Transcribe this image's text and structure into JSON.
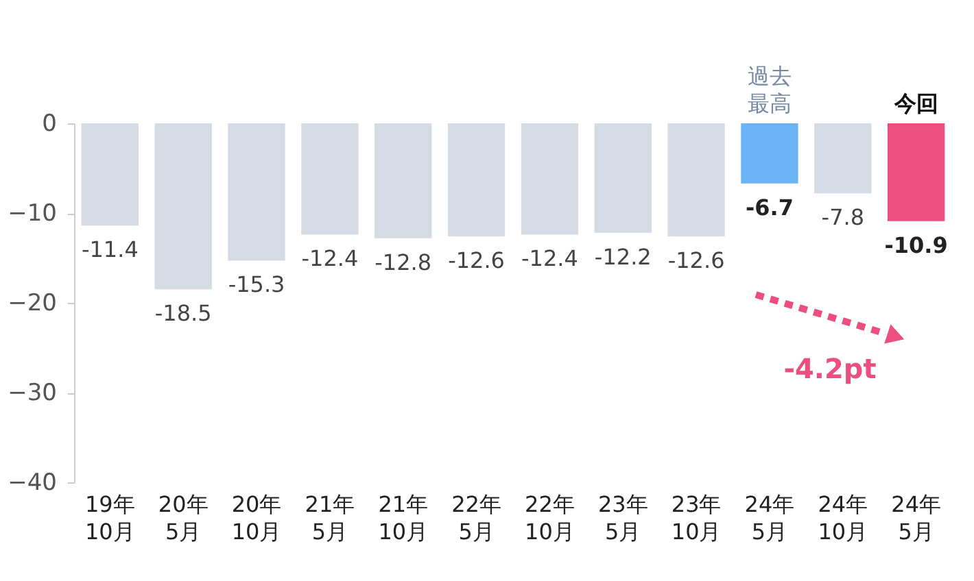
{
  "chart_data": {
    "type": "bar",
    "categories": [
      "19年\n10月",
      "20年\n5月",
      "20年\n10月",
      "21年\n5月",
      "21年\n10月",
      "22年\n5月",
      "22年\n10月",
      "23年\n5月",
      "23年\n10月",
      "24年\n5月",
      "24年\n10月",
      "24年\n5月"
    ],
    "values": [
      -11.4,
      -18.5,
      -15.3,
      -12.4,
      -12.8,
      -12.6,
      -12.4,
      -12.2,
      -12.6,
      -6.7,
      -7.8,
      -10.9
    ],
    "colors": [
      "#d5dbe4",
      "#d5dbe4",
      "#d5dbe4",
      "#d5dbe4",
      "#d5dbe4",
      "#d5dbe4",
      "#d5dbe4",
      "#d5dbe4",
      "#d5dbe4",
      "#6ab4f5",
      "#d5dbe4",
      "#ec4e7f"
    ],
    "data_labels": true,
    "ylim": [
      -40,
      0
    ],
    "yticks": [
      0,
      -10,
      -20,
      -30,
      -40
    ],
    "grid": false,
    "annotations": [
      "過去最高",
      "今回",
      "-4.2pt"
    ]
  }
}
